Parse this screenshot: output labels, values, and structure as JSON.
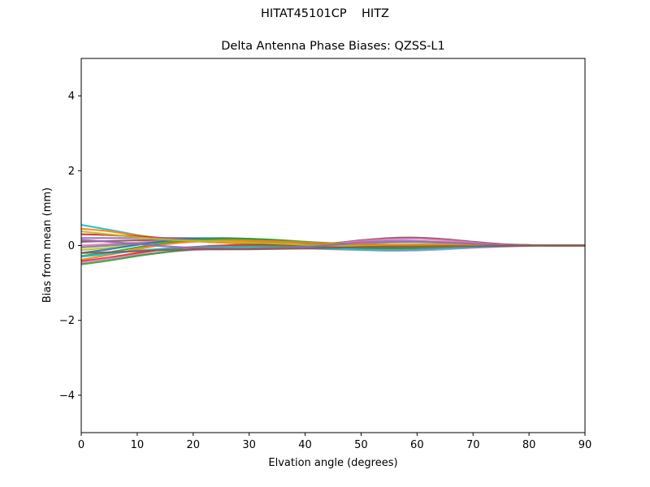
{
  "figure": {
    "suptitle": "HITAT45101CP    HITZ",
    "title": "Delta Antenna Phase Biases: QZSS-L1"
  },
  "chart_data": {
    "type": "line",
    "title": "Delta Antenna Phase Biases: QZSS-L1",
    "suptitle": "HITAT45101CP    HITZ",
    "xlabel": "Elvation angle (degrees)",
    "ylabel": "Bias from mean (mm)",
    "xlim": [
      0,
      90
    ],
    "ylim": [
      -5,
      5
    ],
    "xticks": [
      0,
      10,
      20,
      30,
      40,
      50,
      60,
      70,
      80,
      90
    ],
    "yticks": [
      -4,
      -2,
      0,
      2,
      4
    ],
    "ytick_labels": [
      "−4",
      "−2",
      "0",
      "2",
      "4"
    ],
    "grid": false,
    "legend": null,
    "x": [
      0,
      5,
      10,
      15,
      20,
      25,
      30,
      35,
      40,
      45,
      50,
      55,
      60,
      65,
      70,
      75,
      80,
      85,
      90
    ],
    "series_note": "Many overlapping per-azimuth curves (matplotlib default color cycle); values estimated from envelope",
    "series": [
      {
        "name": "az-1",
        "color": "#17becf",
        "values": [
          0.55,
          0.42,
          0.28,
          0.18,
          0.12,
          0.08,
          0.05,
          0.02,
          0.0,
          -0.03,
          -0.06,
          -0.08,
          -0.08,
          -0.06,
          -0.03,
          -0.01,
          0.0,
          0.0,
          0.0
        ]
      },
      {
        "name": "az-2",
        "color": "#ff7f0e",
        "values": [
          0.45,
          0.38,
          0.27,
          0.18,
          0.12,
          0.08,
          0.05,
          0.02,
          0.0,
          -0.02,
          -0.04,
          -0.05,
          -0.05,
          -0.04,
          -0.02,
          -0.01,
          0.0,
          0.0,
          0.0
        ]
      },
      {
        "name": "az-3",
        "color": "#d62728",
        "values": [
          0.3,
          0.28,
          0.24,
          0.2,
          0.18,
          0.15,
          0.1,
          0.05,
          0.0,
          -0.04,
          -0.06,
          -0.07,
          -0.06,
          -0.05,
          -0.03,
          -0.01,
          0.0,
          0.0,
          0.0
        ]
      },
      {
        "name": "az-4",
        "color": "#9467bd",
        "values": [
          0.2,
          0.2,
          0.2,
          0.2,
          0.2,
          0.18,
          0.14,
          0.08,
          0.02,
          0.05,
          0.12,
          0.18,
          0.2,
          0.16,
          0.09,
          0.04,
          0.01,
          0.0,
          0.0
        ]
      },
      {
        "name": "az-5",
        "color": "#8c564b",
        "values": [
          0.1,
          0.12,
          0.14,
          0.15,
          0.15,
          0.14,
          0.11,
          0.06,
          0.02,
          0.06,
          0.14,
          0.2,
          0.21,
          0.17,
          0.1,
          0.04,
          0.01,
          0.0,
          0.0
        ]
      },
      {
        "name": "az-6",
        "color": "#e377c2",
        "values": [
          0.0,
          0.04,
          0.08,
          0.12,
          0.14,
          0.14,
          0.12,
          0.08,
          0.03,
          0.05,
          0.12,
          0.17,
          0.18,
          0.14,
          0.08,
          0.03,
          0.01,
          0.0,
          0.0
        ]
      },
      {
        "name": "az-7",
        "color": "#7f7f7f",
        "values": [
          -0.05,
          0.0,
          0.05,
          0.09,
          0.12,
          0.12,
          0.1,
          0.06,
          0.02,
          0.02,
          0.05,
          0.08,
          0.09,
          0.07,
          0.04,
          0.02,
          0.0,
          0.0,
          0.0
        ]
      },
      {
        "name": "az-8",
        "color": "#bcbd22",
        "values": [
          -0.12,
          -0.06,
          0.02,
          0.08,
          0.13,
          0.16,
          0.15,
          0.11,
          0.06,
          0.03,
          0.02,
          0.02,
          0.03,
          0.03,
          0.02,
          0.01,
          0.0,
          0.0,
          0.0
        ]
      },
      {
        "name": "az-9",
        "color": "#1f77b4",
        "values": [
          -0.2,
          -0.1,
          0.02,
          0.12,
          0.18,
          0.2,
          0.18,
          0.13,
          0.07,
          0.02,
          -0.02,
          -0.04,
          -0.04,
          -0.03,
          -0.02,
          -0.01,
          0.0,
          0.0,
          0.0
        ]
      },
      {
        "name": "az-10",
        "color": "#2ca02c",
        "values": [
          -0.28,
          -0.18,
          -0.05,
          0.06,
          0.14,
          0.18,
          0.18,
          0.15,
          0.1,
          0.06,
          0.03,
          0.01,
          0.0,
          0.01,
          0.02,
          0.02,
          0.01,
          0.0,
          0.0
        ]
      },
      {
        "name": "az-11",
        "color": "#ff7f0e",
        "values": [
          -0.38,
          -0.25,
          -0.1,
          0.03,
          0.1,
          0.13,
          0.13,
          0.11,
          0.08,
          0.05,
          0.03,
          0.02,
          0.02,
          0.02,
          0.02,
          0.01,
          0.0,
          0.0,
          0.0
        ]
      },
      {
        "name": "az-12",
        "color": "#d62728",
        "values": [
          -0.42,
          -0.32,
          -0.2,
          -0.1,
          -0.04,
          0.0,
          0.02,
          0.02,
          0.0,
          -0.03,
          -0.06,
          -0.08,
          -0.08,
          -0.06,
          -0.04,
          -0.02,
          0.0,
          0.0,
          0.0
        ]
      },
      {
        "name": "az-13",
        "color": "#e377c2",
        "values": [
          -0.45,
          -0.35,
          -0.25,
          -0.17,
          -0.12,
          -0.1,
          -0.09,
          -0.08,
          -0.08,
          -0.1,
          -0.12,
          -0.14,
          -0.13,
          -0.1,
          -0.06,
          -0.03,
          -0.01,
          0.0,
          0.0
        ]
      },
      {
        "name": "az-14",
        "color": "#2ca02c",
        "values": [
          -0.5,
          -0.4,
          -0.28,
          -0.18,
          -0.1,
          -0.05,
          -0.02,
          -0.02,
          -0.03,
          -0.05,
          -0.07,
          -0.08,
          -0.07,
          -0.05,
          -0.03,
          -0.01,
          0.0,
          0.0,
          0.0
        ]
      },
      {
        "name": "az-15",
        "color": "#17becf",
        "values": [
          -0.3,
          -0.22,
          -0.14,
          -0.08,
          -0.05,
          -0.04,
          -0.04,
          -0.05,
          -0.07,
          -0.09,
          -0.11,
          -0.12,
          -0.11,
          -0.08,
          -0.05,
          -0.02,
          0.0,
          0.0,
          0.0
        ]
      },
      {
        "name": "az-16",
        "color": "#bcbd22",
        "values": [
          0.38,
          0.3,
          0.22,
          0.16,
          0.13,
          0.11,
          0.08,
          0.05,
          0.02,
          0.0,
          -0.02,
          -0.03,
          -0.03,
          -0.02,
          -0.01,
          0.0,
          0.0,
          0.0,
          0.0
        ]
      },
      {
        "name": "az-17",
        "color": "#9467bd",
        "values": [
          0.15,
          0.1,
          0.04,
          -0.02,
          -0.06,
          -0.08,
          -0.08,
          -0.06,
          -0.03,
          0.02,
          0.08,
          0.12,
          0.12,
          0.09,
          0.05,
          0.02,
          0.0,
          0.0,
          0.0
        ]
      },
      {
        "name": "az-18",
        "color": "#8c564b",
        "values": [
          -0.2,
          -0.18,
          -0.15,
          -0.12,
          -0.1,
          -0.1,
          -0.1,
          -0.09,
          -0.08,
          -0.06,
          -0.04,
          -0.03,
          -0.03,
          -0.02,
          -0.02,
          -0.01,
          0.0,
          0.0,
          0.0
        ]
      }
    ]
  }
}
